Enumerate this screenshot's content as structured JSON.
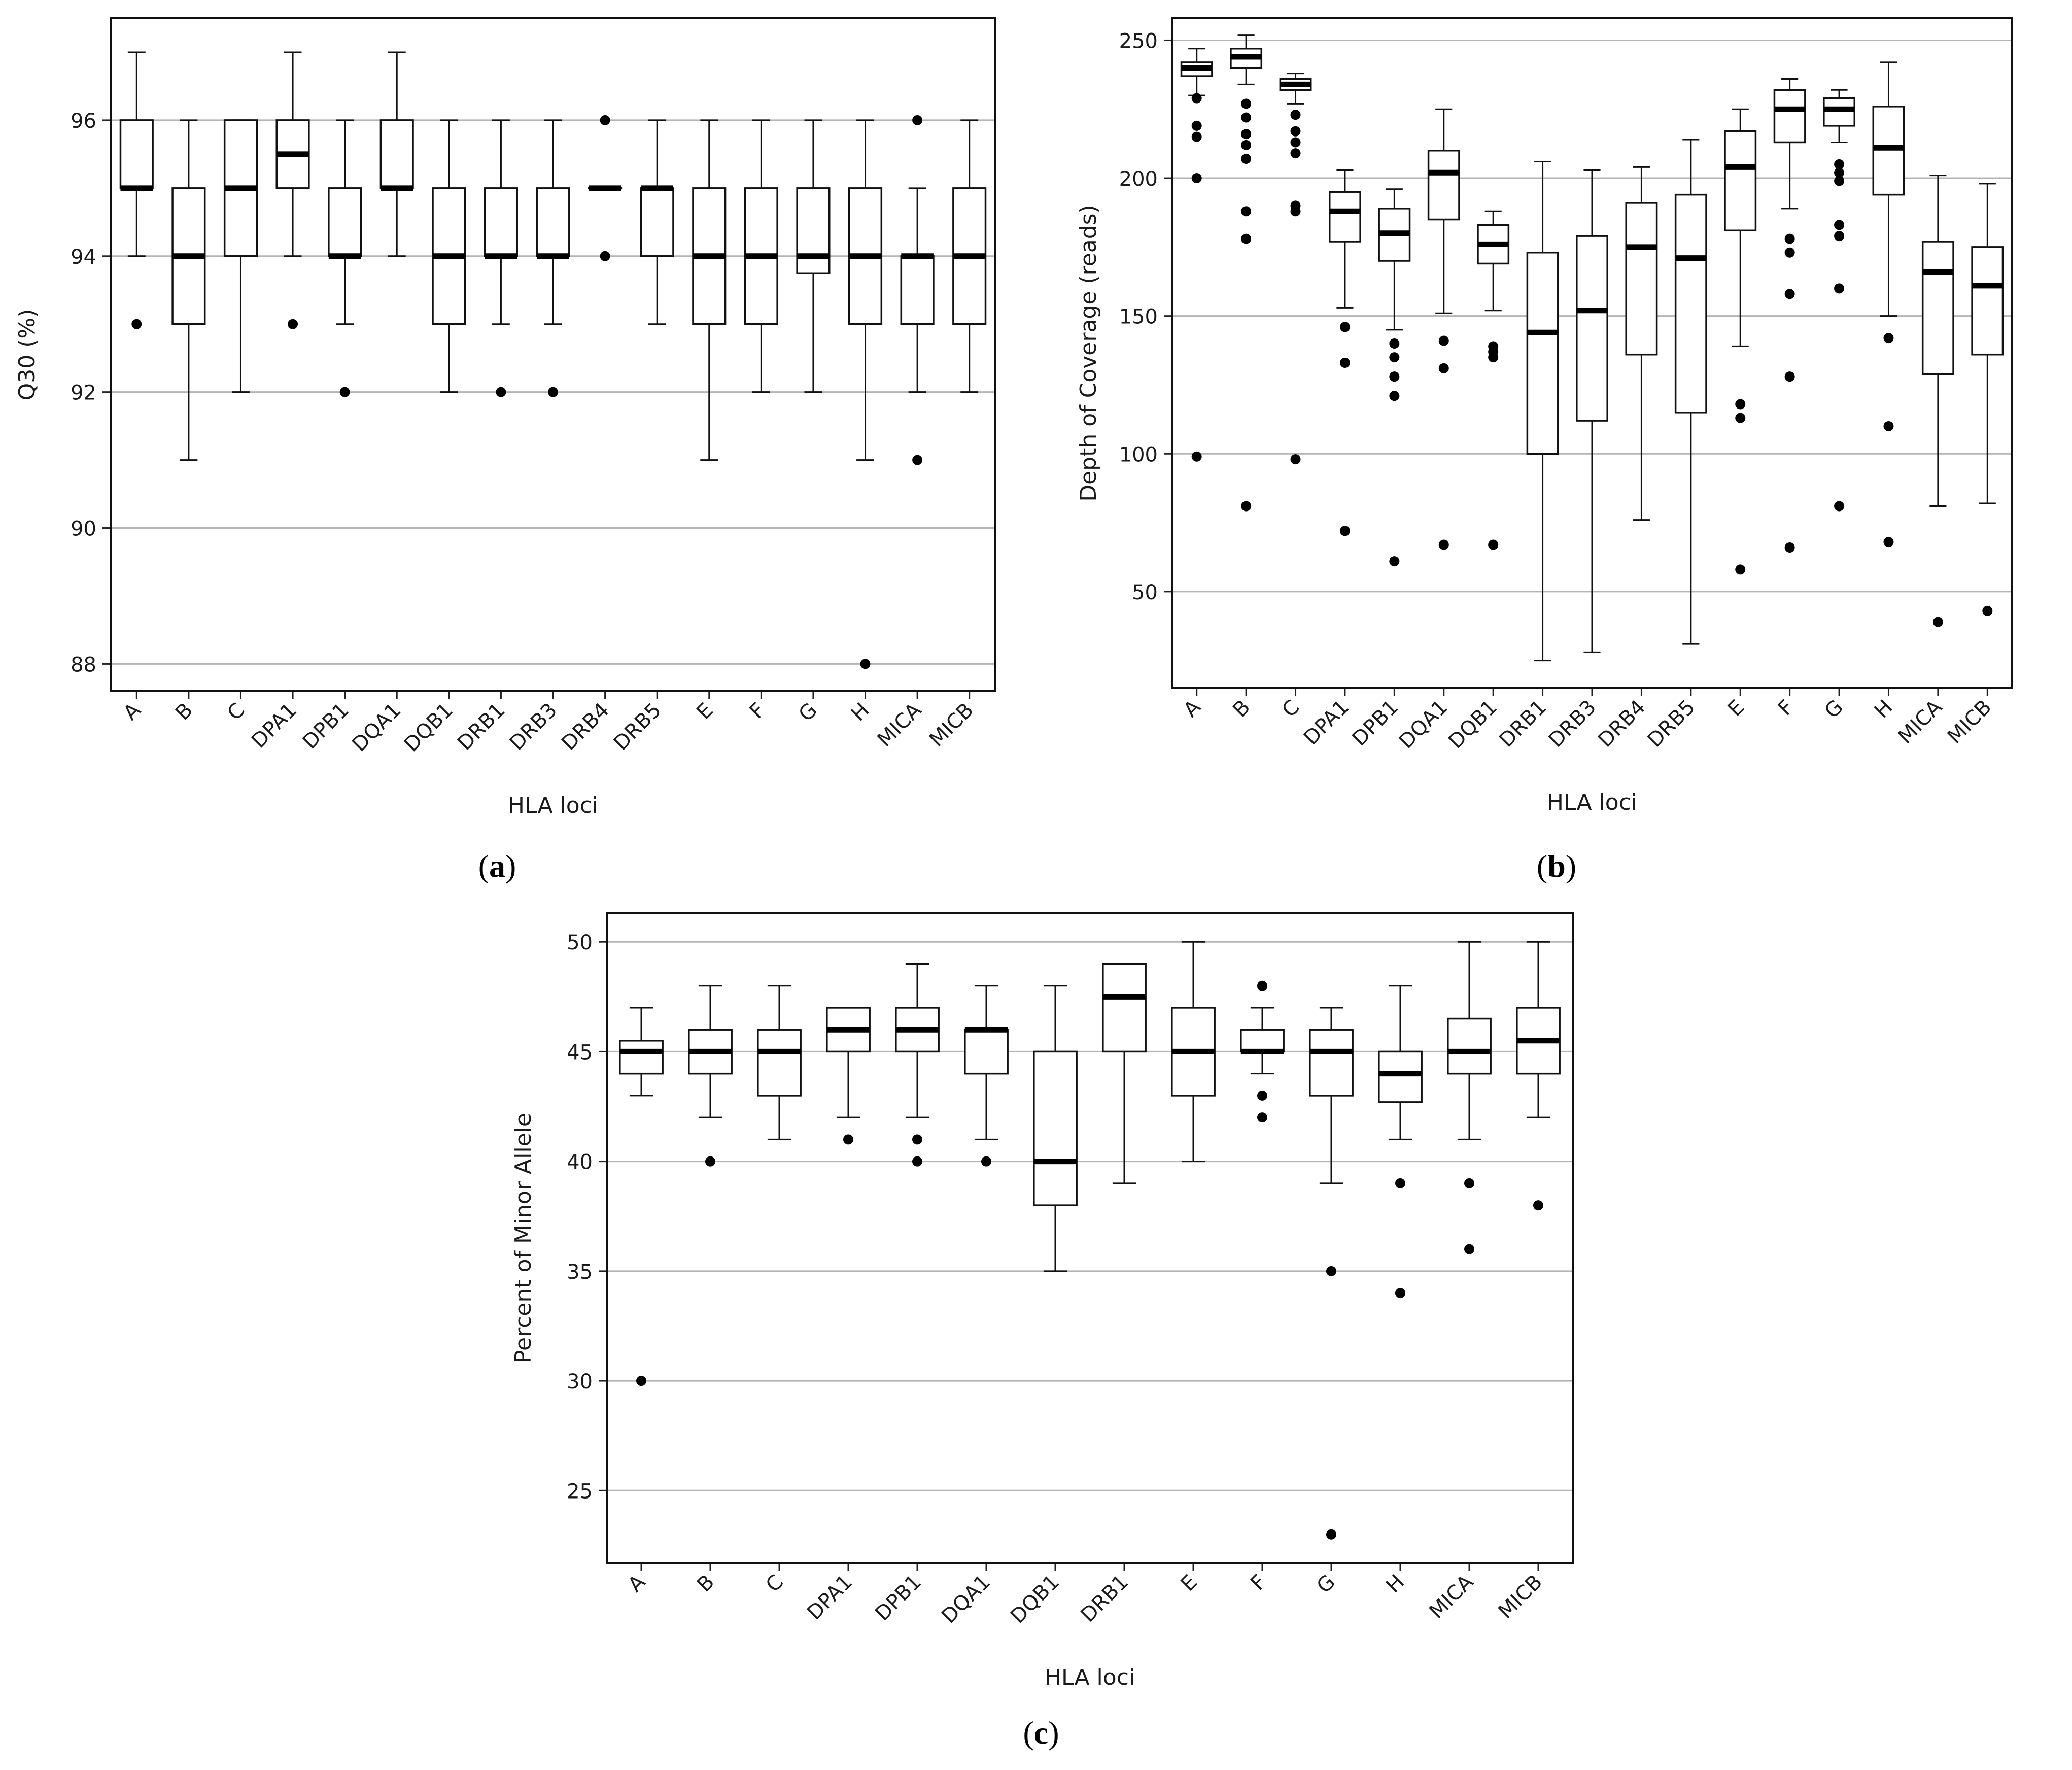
{
  "chart_data": [
    {
      "panel_tag": "a",
      "type": "boxplot",
      "title": "",
      "xlabel": "HLA loci",
      "ylabel": "Q30 (%)",
      "ylim": [
        87.6,
        97.5
      ],
      "yticks": [
        88,
        90,
        92,
        94,
        96
      ],
      "grid": "horizontal",
      "categories": [
        "A",
        "B",
        "C",
        "DPA1",
        "DPB1",
        "DQA1",
        "DQB1",
        "DRB1",
        "DRB3",
        "DRB4",
        "DRB5",
        "E",
        "F",
        "G",
        "H",
        "MICA",
        "MICB"
      ],
      "boxes": [
        {
          "whislo": 94,
          "q1": 95,
          "med": 95,
          "q3": 96,
          "whishi": 97,
          "fliers": [
            93
          ]
        },
        {
          "whislo": 91,
          "q1": 93,
          "med": 94,
          "q3": 95,
          "whishi": 96,
          "fliers": []
        },
        {
          "whislo": 92,
          "q1": 94,
          "med": 95,
          "q3": 96,
          "whishi": 96,
          "fliers": []
        },
        {
          "whislo": 94,
          "q1": 95,
          "med": 95.5,
          "q3": 96,
          "whishi": 97,
          "fliers": [
            93
          ]
        },
        {
          "whislo": 93,
          "q1": 94,
          "med": 94,
          "q3": 95,
          "whishi": 96,
          "fliers": [
            92
          ]
        },
        {
          "whislo": 94,
          "q1": 95,
          "med": 95,
          "q3": 96,
          "whishi": 97,
          "fliers": []
        },
        {
          "whislo": 92,
          "q1": 93,
          "med": 94,
          "q3": 95,
          "whishi": 96,
          "fliers": []
        },
        {
          "whislo": 93,
          "q1": 94,
          "med": 94,
          "q3": 95,
          "whishi": 96,
          "fliers": [
            92
          ]
        },
        {
          "whislo": 93,
          "q1": 94,
          "med": 94,
          "q3": 95,
          "whishi": 96,
          "fliers": [
            92
          ]
        },
        {
          "whislo": 95,
          "q1": 95,
          "med": 95,
          "q3": 95,
          "whishi": 95,
          "fliers": [
            96,
            94
          ]
        },
        {
          "whislo": 93,
          "q1": 94,
          "med": 95,
          "q3": 95,
          "whishi": 96,
          "fliers": []
        },
        {
          "whislo": 91,
          "q1": 93,
          "med": 94,
          "q3": 95,
          "whishi": 96,
          "fliers": []
        },
        {
          "whislo": 92,
          "q1": 93,
          "med": 94,
          "q3": 95,
          "whishi": 96,
          "fliers": []
        },
        {
          "whislo": 92,
          "q1": 93.75,
          "med": 94,
          "q3": 95,
          "whishi": 96,
          "fliers": []
        },
        {
          "whislo": 91,
          "q1": 93,
          "med": 94,
          "q3": 95,
          "whishi": 96,
          "fliers": [
            88
          ]
        },
        {
          "whislo": 92,
          "q1": 93,
          "med": 94,
          "q3": 94,
          "whishi": 95,
          "fliers": [
            96,
            91
          ]
        },
        {
          "whislo": 92,
          "q1": 93,
          "med": 94,
          "q3": 95,
          "whishi": 96,
          "fliers": []
        }
      ]
    },
    {
      "panel_tag": "b",
      "type": "boxplot",
      "title": "",
      "xlabel": "HLA loci",
      "ylabel": "Depth of Coverage (reads)",
      "ylim": [
        15,
        258
      ],
      "yticks": [
        50,
        100,
        150,
        200,
        250
      ],
      "grid": "horizontal",
      "categories": [
        "A",
        "B",
        "C",
        "DPA1",
        "DPB1",
        "DQA1",
        "DQB1",
        "DRB1",
        "DRB3",
        "DRB4",
        "DRB5",
        "E",
        "F",
        "G",
        "H",
        "MICA",
        "MICB"
      ],
      "boxes": [
        {
          "whislo": 230,
          "q1": 237,
          "med": 240,
          "q3": 242,
          "whishi": 247,
          "fliers": [
            229,
            219,
            215,
            200,
            99
          ]
        },
        {
          "whislo": 234,
          "q1": 240,
          "med": 244,
          "q3": 247,
          "whishi": 252,
          "fliers": [
            227,
            222,
            216,
            212,
            207,
            188,
            178,
            81
          ]
        },
        {
          "whislo": 227,
          "q1": 232,
          "med": 234,
          "q3": 236,
          "whishi": 238,
          "fliers": [
            223,
            217,
            213,
            209,
            190,
            188,
            98
          ]
        },
        {
          "whislo": 153,
          "q1": 177,
          "med": 188,
          "q3": 195,
          "whishi": 203,
          "fliers": [
            146,
            133,
            72
          ]
        },
        {
          "whislo": 145,
          "q1": 170,
          "med": 180,
          "q3": 189,
          "whishi": 196,
          "fliers": [
            140,
            135,
            128,
            121,
            61
          ]
        },
        {
          "whislo": 151,
          "q1": 185,
          "med": 202,
          "q3": 210,
          "whishi": 225,
          "fliers": [
            141,
            131,
            67
          ]
        },
        {
          "whislo": 152,
          "q1": 169,
          "med": 176,
          "q3": 183,
          "whishi": 188,
          "fliers": [
            139,
            137,
            135,
            67
          ]
        },
        {
          "whislo": 25,
          "q1": 100,
          "med": 144,
          "q3": 173,
          "whishi": 206,
          "fliers": []
        },
        {
          "whislo": 28,
          "q1": 112,
          "med": 152,
          "q3": 179,
          "whishi": 203,
          "fliers": []
        },
        {
          "whislo": 76,
          "q1": 136,
          "med": 175,
          "q3": 191,
          "whishi": 204,
          "fliers": []
        },
        {
          "whislo": 31,
          "q1": 115,
          "med": 171,
          "q3": 194,
          "whishi": 214,
          "fliers": []
        },
        {
          "whislo": 139,
          "q1": 181,
          "med": 204,
          "q3": 217,
          "whishi": 225,
          "fliers": [
            118,
            113,
            58
          ]
        },
        {
          "whislo": 189,
          "q1": 213,
          "med": 225,
          "q3": 232,
          "whishi": 236,
          "fliers": [
            178,
            173,
            158,
            128,
            66
          ]
        },
        {
          "whislo": 213,
          "q1": 219,
          "med": 225,
          "q3": 229,
          "whishi": 232,
          "fliers": [
            205,
            202,
            199,
            183,
            179,
            160,
            81
          ]
        },
        {
          "whislo": 150,
          "q1": 194,
          "med": 211,
          "q3": 226,
          "whishi": 242,
          "fliers": [
            142,
            110,
            68
          ]
        },
        {
          "whislo": 81,
          "q1": 129,
          "med": 166,
          "q3": 177,
          "whishi": 201,
          "fliers": [
            39
          ]
        },
        {
          "whislo": 82,
          "q1": 136,
          "med": 161,
          "q3": 175,
          "whishi": 198,
          "fliers": [
            43
          ]
        }
      ]
    },
    {
      "panel_tag": "c",
      "type": "boxplot",
      "title": "",
      "xlabel": "HLA loci",
      "ylabel": "Percent of Minor Allele",
      "ylim": [
        21.7,
        51.3
      ],
      "yticks": [
        25,
        30,
        35,
        40,
        45,
        50
      ],
      "grid": "horizontal",
      "categories": [
        "A",
        "B",
        "C",
        "DPA1",
        "DPB1",
        "DQA1",
        "DQB1",
        "DRB1",
        "E",
        "F",
        "G",
        "H",
        "MICA",
        "MICB"
      ],
      "boxes": [
        {
          "whislo": 43,
          "q1": 44,
          "med": 45,
          "q3": 45.5,
          "whishi": 47,
          "fliers": [
            30
          ]
        },
        {
          "whislo": 42,
          "q1": 44,
          "med": 45,
          "q3": 46,
          "whishi": 48,
          "fliers": [
            40
          ]
        },
        {
          "whislo": 41,
          "q1": 43,
          "med": 45,
          "q3": 46,
          "whishi": 48,
          "fliers": []
        },
        {
          "whislo": 42,
          "q1": 45,
          "med": 46,
          "q3": 47,
          "whishi": 47,
          "fliers": [
            41
          ]
        },
        {
          "whislo": 42,
          "q1": 45,
          "med": 46,
          "q3": 47,
          "whishi": 49,
          "fliers": [
            41,
            40
          ]
        },
        {
          "whislo": 41,
          "q1": 44,
          "med": 46,
          "q3": 46,
          "whishi": 48,
          "fliers": [
            40
          ]
        },
        {
          "whislo": 35,
          "q1": 38,
          "med": 40,
          "q3": 45,
          "whishi": 48,
          "fliers": []
        },
        {
          "whislo": 39,
          "q1": 45,
          "med": 47.5,
          "q3": 49,
          "whishi": 49,
          "fliers": []
        },
        {
          "whislo": 40,
          "q1": 43,
          "med": 45,
          "q3": 47,
          "whishi": 50,
          "fliers": []
        },
        {
          "whislo": 44,
          "q1": 45,
          "med": 45,
          "q3": 46,
          "whishi": 47,
          "fliers": [
            48,
            43,
            42
          ]
        },
        {
          "whislo": 39,
          "q1": 43,
          "med": 45,
          "q3": 46,
          "whishi": 47,
          "fliers": [
            35,
            23
          ]
        },
        {
          "whislo": 41,
          "q1": 42.7,
          "med": 44,
          "q3": 45,
          "whishi": 48,
          "fliers": [
            39,
            34
          ]
        },
        {
          "whislo": 41,
          "q1": 44,
          "med": 45,
          "q3": 46.5,
          "whishi": 50,
          "fliers": [
            39,
            36
          ]
        },
        {
          "whislo": 42,
          "q1": 44,
          "med": 45.5,
          "q3": 47,
          "whishi": 50,
          "fliers": [
            38
          ]
        }
      ]
    }
  ],
  "panel_labels": [
    {
      "open": "(",
      "letter": "a",
      "close": ")"
    },
    {
      "open": "(",
      "letter": "b",
      "close": ")"
    },
    {
      "open": "(",
      "letter": "c",
      "close": ")"
    }
  ]
}
